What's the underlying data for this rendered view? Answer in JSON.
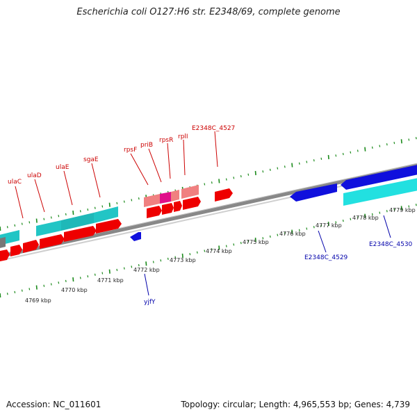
{
  "title": "Escherichia coli O127:H6 str. E2348/69, complete genome",
  "footer": {
    "accession": "Accession: NC_011601",
    "topology": "Topology: circular; Length: 4,965,553 bp; Genes: 4,739"
  },
  "ruler_labels": [
    "4769 kbp",
    "4770 kbp",
    "4771 kbp",
    "4772 kbp",
    "4773 kbp",
    "4774 kbp",
    "4775 kbp",
    "4776 kbp",
    "4777 kbp",
    "4778 kbp",
    "4779 kbp"
  ],
  "forward_gene_labels": [
    "ulaC",
    "ulaD",
    "ulaE",
    "sgaE",
    "rpsF",
    "priB",
    "rpsR",
    "rplI",
    "E2348C_4527"
  ],
  "reverse_gene_labels": [
    "yjfY",
    "E2348C_4529",
    "E2348C_4530"
  ],
  "colors": {
    "forward_cds": "#ee0000",
    "forward_other": "#f08080",
    "forward_rrna": "#e0108a",
    "reverse_cds": "#1010dd",
    "gene_region": "#22c5c5",
    "backbone": "#888888",
    "tick": "#1a8a1a",
    "forward_label": "#cc0000",
    "reverse_label": "#0000aa"
  }
}
